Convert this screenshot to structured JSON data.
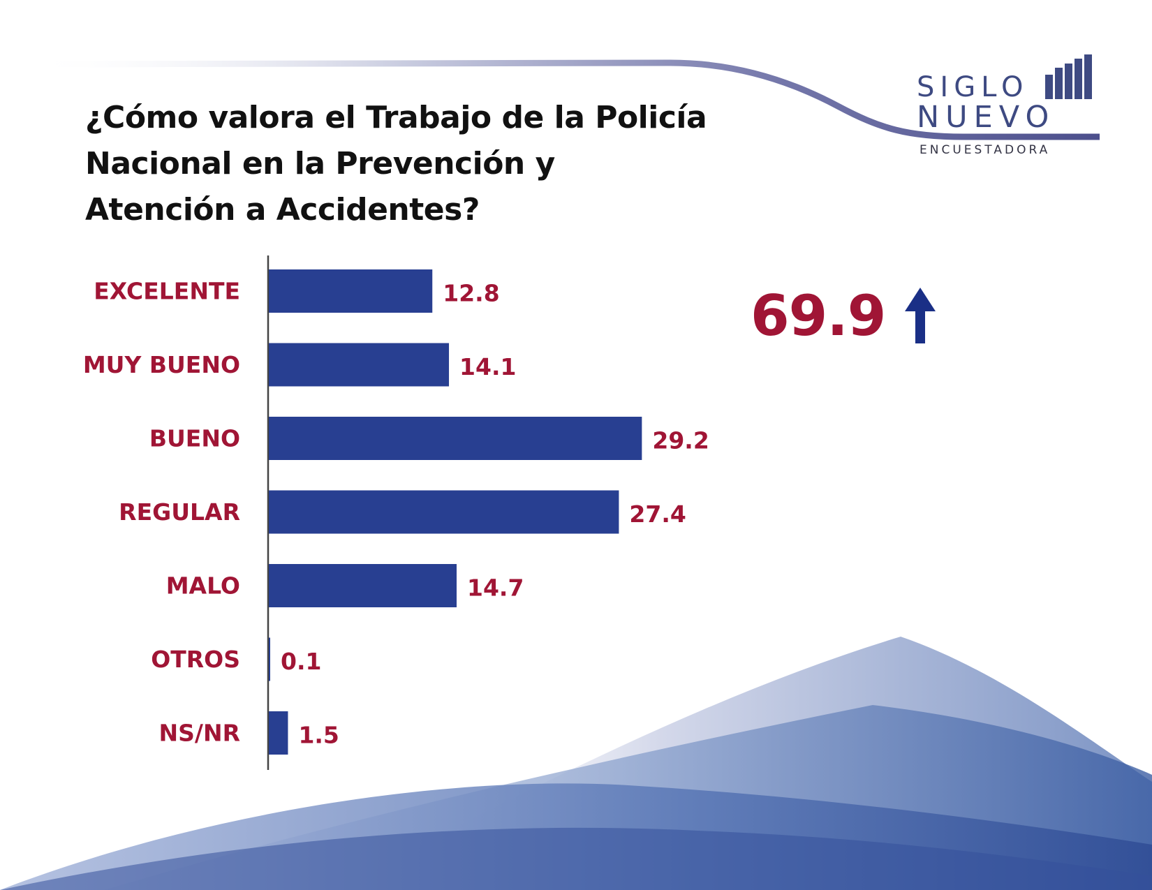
{
  "title": "¿Cómo valora el Trabajo de la Policía Nacional en la Prevención y Atención a Accidentes?",
  "logo": {
    "line1": "SIGLO",
    "line2": "NUEVO",
    "line3": "ENCUESTADORA",
    "bar_levels": [
      0.55,
      0.7,
      0.8,
      0.9,
      1.0
    ]
  },
  "highlight": {
    "value": "69.9",
    "icon": "arrow-up-icon"
  },
  "colors": {
    "bar": "#283f91",
    "label": "#a01535",
    "value": "#a01535",
    "arrow": "#1a2f86",
    "axis": "#444444",
    "logo": "#3e4a82"
  },
  "chart_data": {
    "type": "bar",
    "orientation": "horizontal",
    "categories": [
      "EXCELENTE",
      "MUY BUENO",
      "BUENO",
      "REGULAR",
      "MALO",
      "OTROS",
      "NS/NR"
    ],
    "values": [
      12.8,
      14.1,
      29.2,
      27.4,
      14.7,
      0.1,
      1.5
    ],
    "value_labels": [
      "12.8",
      "14.1",
      "29.2",
      "27.4",
      "14.7",
      "0.1",
      "1.5"
    ],
    "xlim": [
      0,
      35
    ],
    "grid": false,
    "legend": "none"
  }
}
